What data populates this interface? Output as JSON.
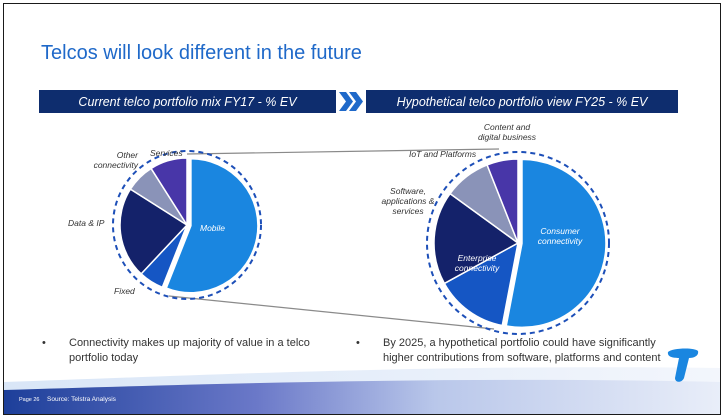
{
  "slide": {
    "title": "Telcos will look different in the future",
    "banner_left": "Current telco portfolio mix FY17 - % EV",
    "banner_right": "Hypothetical telco portfolio view FY25 - % EV",
    "bullet_left": "Connectivity makes up majority of value in a telco portfolio today",
    "bullet_right": "By 2025, a hypothetical portfolio could have significantly higher contributions from software, platforms and content",
    "bullet_symbol": "•",
    "page_label": "Page 26",
    "source": "Source: Telstra Analysis",
    "logo_name": "telstra-t-logo"
  },
  "left_pie": {
    "labels": {
      "mobile": "Mobile",
      "fixed": "Fixed",
      "data_ip": "Data & IP",
      "other": "Other connectivity",
      "services": "Services"
    },
    "other_line1": "Other",
    "other_line2": "connectivity"
  },
  "right_pie": {
    "labels": {
      "consumer_line1": "Consumer",
      "consumer_line2": "connectivity",
      "enterprise_line1": "Enterprise",
      "enterprise_line2": "connectivity",
      "software_line1": "Software,",
      "software_line2": "applications &",
      "software_line3": "services",
      "iot": "IoT and Platforms",
      "content_line1": "Content and",
      "content_line2": "digital business"
    }
  },
  "colors": {
    "banner": "#0e2d6e",
    "title": "#1f69c9",
    "mobile": "#1a86e0",
    "fixed": "#1556c4",
    "data_ip": "#14226a",
    "other": "#8a93b8",
    "services": "#4836a8",
    "dash": "#1d4fb8"
  },
  "chart_data": [
    {
      "type": "pie",
      "title": "Current telco portfolio mix FY17 - % EV",
      "categories": [
        "Mobile",
        "Fixed",
        "Data & IP",
        "Other connectivity",
        "Services"
      ],
      "values": [
        56,
        6,
        22,
        7,
        9
      ]
    },
    {
      "type": "pie",
      "title": "Hypothetical telco portfolio view FY25 - % EV",
      "categories": [
        "Consumer connectivity",
        "Enterprise connectivity",
        "Software, applications & services",
        "IoT and Platforms",
        "Content and digital business"
      ],
      "values": [
        53,
        14,
        18,
        9,
        6
      ]
    }
  ]
}
